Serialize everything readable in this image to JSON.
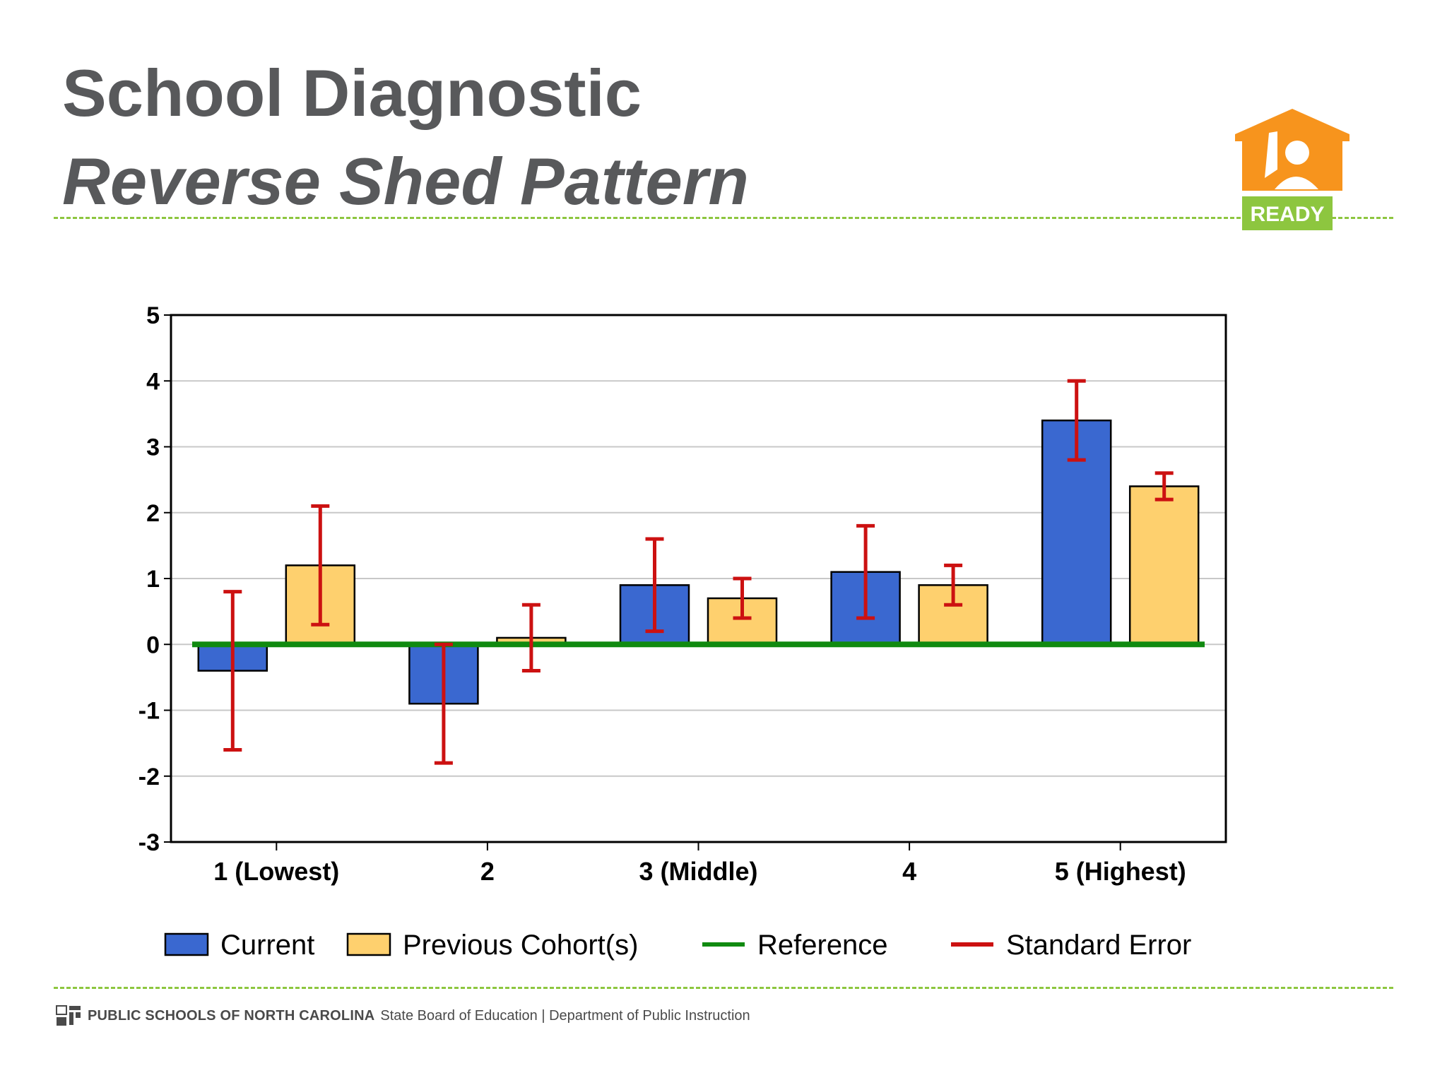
{
  "slide": {
    "title": "School Diagnostic",
    "subtitle": "Reverse Shed Pattern",
    "logo_text": "READY",
    "footer_org": "PUBLIC SCHOOLS OF NORTH CAROLINA",
    "footer_dept": "State Board of Education | Department of Public Instruction",
    "colors": {
      "title": "#58595b",
      "divider": "#8dc63f",
      "logo_orange": "#f7941d",
      "logo_green": "#8dc63f"
    }
  },
  "chart_data": {
    "type": "bar",
    "title": "",
    "xlabel": "",
    "ylabel": "",
    "categories": [
      "1 (Lowest)",
      "2",
      "3 (Middle)",
      "4",
      "5 (Highest)"
    ],
    "ylim": [
      -3,
      5
    ],
    "yticks": [
      5,
      4,
      3,
      2,
      1,
      0,
      -1,
      -2,
      -3
    ],
    "grid": true,
    "series": [
      {
        "name": "Current",
        "color": "#3a68d0",
        "values": [
          -0.4,
          -0.9,
          0.9,
          1.1,
          3.4
        ],
        "error_low": [
          -1.6,
          -1.8,
          0.2,
          0.4,
          2.8
        ],
        "error_high": [
          0.8,
          0.0,
          1.6,
          1.8,
          4.0
        ]
      },
      {
        "name": "Previous Cohort(s)",
        "color": "#fed06e",
        "values": [
          1.2,
          0.1,
          0.7,
          0.9,
          2.4
        ],
        "error_low": [
          0.3,
          -0.4,
          0.4,
          0.6,
          2.2
        ],
        "error_high": [
          2.1,
          0.6,
          1.0,
          1.2,
          2.6
        ]
      }
    ],
    "reference": {
      "name": "Reference",
      "value": 0,
      "color": "#108a10"
    },
    "error_bars": {
      "name": "Standard Error",
      "color": "#cc1111"
    },
    "legend": {
      "position": "bottom",
      "items": [
        {
          "label": "Current",
          "kind": "box",
          "color": "#3a68d0"
        },
        {
          "label": "Previous Cohort(s)",
          "kind": "box",
          "color": "#fed06e"
        },
        {
          "label": "Reference",
          "kind": "line",
          "color": "#108a10"
        },
        {
          "label": "Standard Error",
          "kind": "line",
          "color": "#cc1111"
        }
      ]
    }
  }
}
